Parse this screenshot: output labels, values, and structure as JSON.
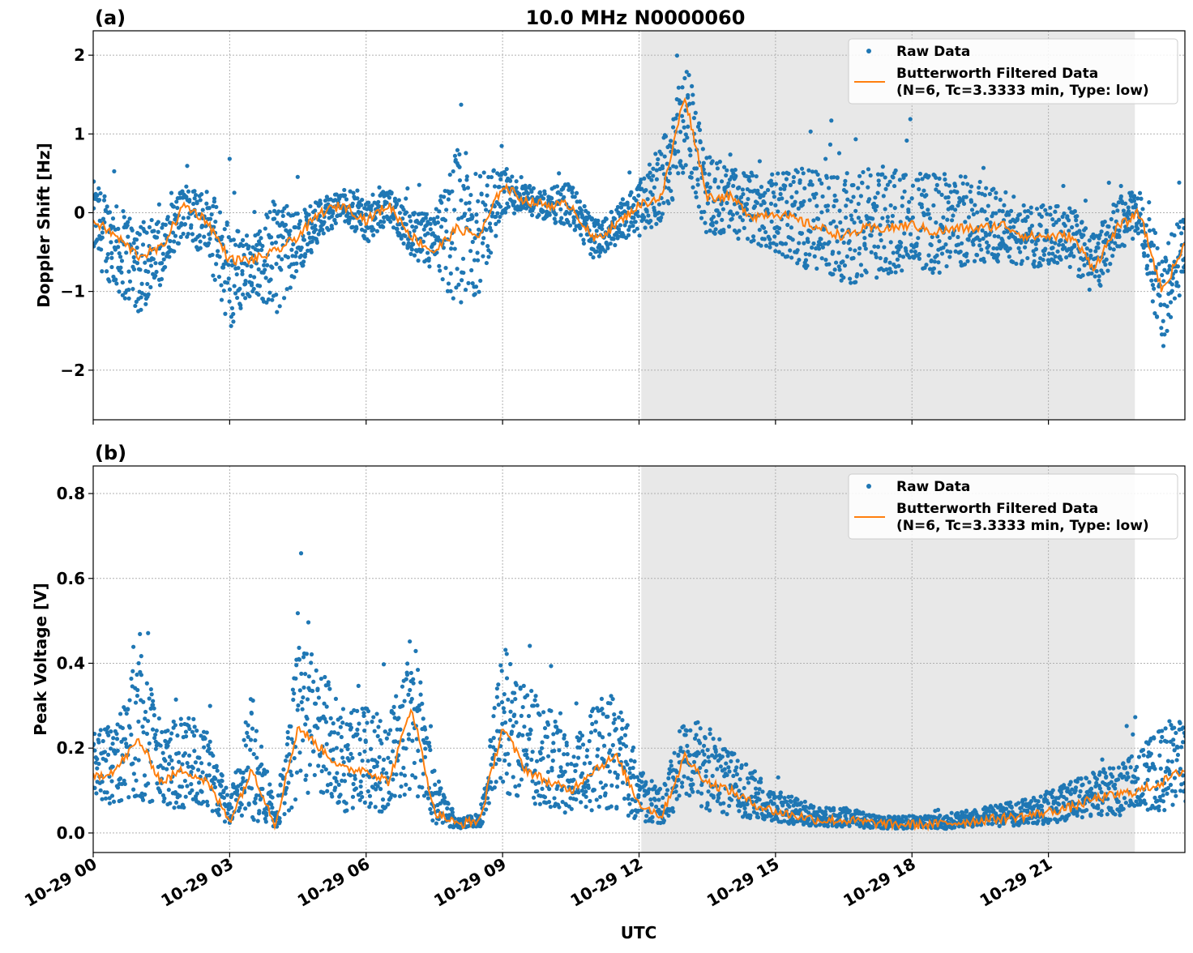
{
  "figure_title": "10.0 MHz N0000060",
  "xlabel": "UTC",
  "x_tick_labels": [
    "10-29 00",
    "10-29 03",
    "10-29 06",
    "10-29 09",
    "10-29 12",
    "10-29 15",
    "10-29 18",
    "10-29 21"
  ],
  "x_tick_hours": [
    0,
    3,
    6,
    9,
    12,
    15,
    18,
    21
  ],
  "xlim_hours": [
    0,
    24
  ],
  "shaded_interval_hours": [
    12.05,
    22.9
  ],
  "colors": {
    "raw": "#1f77b4",
    "filtered": "#ff7f0e",
    "shade": "#e8e8e8",
    "grid": "#b0b0b0"
  },
  "legend": {
    "raw": "Raw Data",
    "filtered_line1": "Butterworth Filtered Data",
    "filtered_line2": "(N=6, Tc=3.3333 min, Type: low)",
    "placement": "top-right"
  },
  "chart_data": [
    {
      "type": "scatter+line",
      "panel_label": "(a)",
      "ylabel": "Doppler Shift [Hz]",
      "ylim": [
        -2.63,
        2.31
      ],
      "y_ticks": [
        -2,
        -1,
        0,
        1,
        2
      ],
      "y_tick_labels": [
        "−2",
        "−1",
        "0",
        "1",
        "2"
      ],
      "grid": true,
      "x_hours": [
        0,
        0.5,
        1,
        1.5,
        2,
        2.5,
        3,
        3.5,
        4,
        4.5,
        5,
        5.5,
        6,
        6.5,
        7,
        7.5,
        8,
        8.5,
        9,
        9.5,
        10,
        10.5,
        11,
        11.5,
        12,
        12.5,
        13,
        13.5,
        14,
        14.5,
        15,
        15.5,
        16,
        16.5,
        17,
        17.5,
        18,
        18.5,
        19,
        19.5,
        20,
        20.5,
        21,
        21.5,
        22,
        22.5,
        23,
        23.5,
        24
      ],
      "filtered": [
        -0.1,
        -0.3,
        -0.55,
        -0.45,
        0.1,
        -0.1,
        -0.6,
        -0.6,
        -0.5,
        -0.3,
        0.0,
        0.1,
        -0.1,
        0.1,
        -0.3,
        -0.5,
        -0.2,
        -0.3,
        0.35,
        0.15,
        0.1,
        0.1,
        -0.35,
        -0.15,
        0.1,
        0.2,
        1.5,
        0.2,
        0.2,
        -0.05,
        0.0,
        -0.1,
        -0.2,
        -0.3,
        -0.2,
        -0.2,
        -0.15,
        -0.25,
        -0.2,
        -0.2,
        -0.15,
        -0.3,
        -0.3,
        -0.3,
        -0.7,
        -0.2,
        0.0,
        -1.0,
        -0.4
      ],
      "raw_low": [
        -0.6,
        -1.0,
        -1.3,
        -0.9,
        -0.3,
        -0.6,
        -1.5,
        -1.0,
        -1.3,
        -0.8,
        -0.3,
        -0.1,
        -0.4,
        -0.1,
        -0.6,
        -0.8,
        -1.2,
        -1.0,
        0.0,
        -0.05,
        -0.1,
        -0.2,
        -0.6,
        -0.4,
        -0.3,
        -0.1,
        0.5,
        -0.3,
        -0.3,
        -0.4,
        -0.5,
        -0.7,
        -0.8,
        -0.9,
        -0.9,
        -0.8,
        -0.7,
        -0.8,
        -0.7,
        -0.7,
        -0.6,
        -0.7,
        -0.7,
        -0.7,
        -1.1,
        -0.5,
        -0.3,
        -1.8,
        -0.8
      ],
      "raw_high": [
        0.4,
        0.1,
        0.0,
        -0.1,
        0.4,
        0.3,
        -0.1,
        -0.3,
        0.2,
        0.0,
        0.2,
        0.3,
        0.2,
        0.3,
        0.0,
        0.0,
        0.9,
        0.5,
        0.6,
        0.35,
        0.3,
        0.4,
        -0.1,
        0.1,
        0.4,
        0.9,
        2.0,
        0.8,
        0.6,
        0.5,
        0.5,
        0.6,
        0.5,
        0.5,
        0.6,
        0.6,
        0.5,
        0.5,
        0.5,
        0.4,
        0.3,
        0.1,
        0.1,
        0.1,
        -0.3,
        0.2,
        0.3,
        -0.5,
        0.1
      ]
    },
    {
      "type": "scatter+line",
      "panel_label": "(b)",
      "ylabel": "Peak Voltage [V]",
      "ylim": [
        -0.046,
        0.865
      ],
      "y_ticks": [
        0,
        0.2,
        0.4,
        0.6,
        0.8
      ],
      "y_tick_labels": [
        "0.0",
        "0.2",
        "0.4",
        "0.6",
        "0.8"
      ],
      "grid": true,
      "x_hours": [
        0,
        0.5,
        1,
        1.5,
        2,
        2.5,
        3,
        3.5,
        4,
        4.5,
        5,
        5.5,
        6,
        6.5,
        7,
        7.5,
        8,
        8.5,
        9,
        9.5,
        10,
        10.5,
        11,
        11.5,
        12,
        12.5,
        13,
        13.5,
        14,
        14.5,
        15,
        15.5,
        16,
        16.5,
        17,
        17.5,
        18,
        18.5,
        19,
        19.5,
        20,
        20.5,
        21,
        21.5,
        22,
        22.5,
        23,
        23.5,
        24
      ],
      "filtered": [
        0.13,
        0.15,
        0.22,
        0.12,
        0.15,
        0.12,
        0.03,
        0.15,
        0.02,
        0.25,
        0.2,
        0.15,
        0.15,
        0.12,
        0.3,
        0.05,
        0.02,
        0.03,
        0.25,
        0.15,
        0.12,
        0.1,
        0.15,
        0.18,
        0.07,
        0.04,
        0.18,
        0.12,
        0.1,
        0.07,
        0.05,
        0.04,
        0.03,
        0.03,
        0.025,
        0.02,
        0.02,
        0.02,
        0.025,
        0.03,
        0.035,
        0.04,
        0.05,
        0.06,
        0.08,
        0.09,
        0.1,
        0.12,
        0.15
      ],
      "raw_low": [
        0.06,
        0.07,
        0.08,
        0.05,
        0.06,
        0.05,
        0.015,
        0.03,
        0.01,
        0.08,
        0.08,
        0.05,
        0.05,
        0.05,
        0.1,
        0.02,
        0.01,
        0.015,
        0.1,
        0.07,
        0.06,
        0.04,
        0.05,
        0.05,
        0.03,
        0.02,
        0.08,
        0.05,
        0.04,
        0.03,
        0.025,
        0.02,
        0.015,
        0.015,
        0.01,
        0.01,
        0.01,
        0.01,
        0.01,
        0.015,
        0.015,
        0.02,
        0.02,
        0.03,
        0.04,
        0.04,
        0.05,
        0.05,
        0.06
      ],
      "raw_high": [
        0.25,
        0.25,
        0.45,
        0.25,
        0.28,
        0.25,
        0.08,
        0.35,
        0.04,
        0.45,
        0.4,
        0.3,
        0.3,
        0.28,
        0.5,
        0.15,
        0.03,
        0.05,
        0.45,
        0.35,
        0.3,
        0.2,
        0.3,
        0.35,
        0.15,
        0.1,
        0.28,
        0.25,
        0.2,
        0.15,
        0.1,
        0.08,
        0.06,
        0.06,
        0.05,
        0.04,
        0.04,
        0.04,
        0.05,
        0.06,
        0.07,
        0.08,
        0.1,
        0.12,
        0.15,
        0.16,
        0.2,
        0.25,
        0.3
      ]
    }
  ]
}
